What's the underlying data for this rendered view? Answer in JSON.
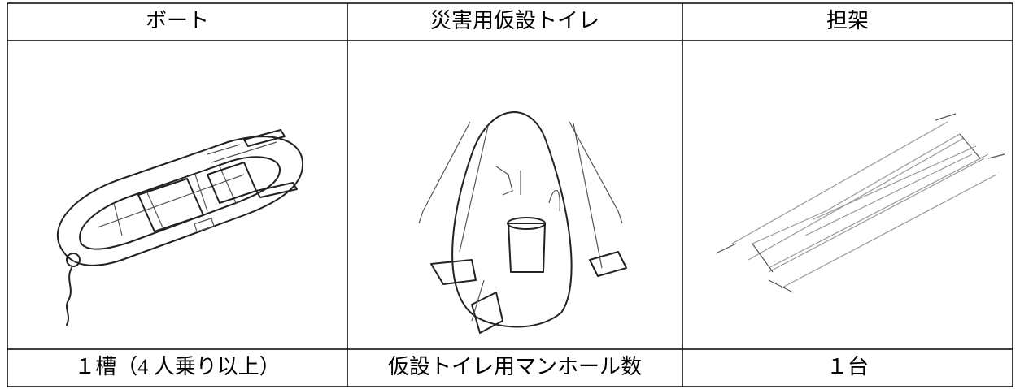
{
  "table": {
    "header": [
      "ボート",
      "災害用仮設トイレ",
      "担架"
    ],
    "rows": [
      [
        "１槽（4 人乗り以上）",
        "仮設トイレ用マンホール数",
        "１台"
      ]
    ]
  }
}
